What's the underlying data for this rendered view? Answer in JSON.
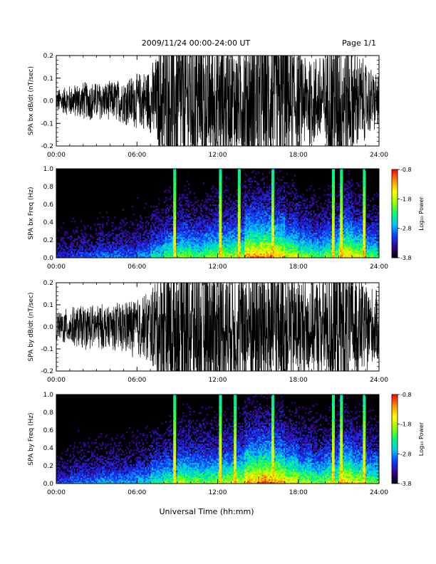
{
  "header": {
    "title": "2009/11/24  00:00-24:00 UT",
    "page": "Page 1/1"
  },
  "xlabel": "Universal Time (hh:mm)",
  "colorbar": {
    "label": "Log₁₀ Power",
    "ticks": [
      "-0.8",
      "-1.8",
      "-2.8",
      "-3.8"
    ],
    "range": [
      -3.8,
      -0.8
    ],
    "colors": [
      "#000000",
      "#3a0090",
      "#0a40ff",
      "#00c8ff",
      "#00ff70",
      "#9aff00",
      "#ffff00",
      "#ff9000",
      "#ff0000"
    ]
  },
  "chart_data": [
    {
      "type": "line",
      "ylabel": "SPA bx dB/dt (nT/sec)",
      "xlim": [
        0,
        24
      ],
      "ylim": [
        -0.2,
        0.2
      ],
      "x_ticks": [
        "00:00",
        "06:00",
        "12:00",
        "18:00",
        "24:00"
      ],
      "y_ticks": [
        "-0.2",
        "-0.1",
        "0.0",
        "0.1",
        "0.2"
      ],
      "series": [
        {
          "color": "#000000",
          "x": [
            0,
            1,
            2,
            3,
            4,
            5,
            6,
            7,
            7.5,
            8,
            9,
            10,
            11,
            12,
            13,
            14,
            15,
            16,
            17,
            18,
            19,
            20,
            20.5,
            21,
            22,
            23,
            24
          ],
          "envelope": [
            0.03,
            0.04,
            0.05,
            0.05,
            0.05,
            0.06,
            0.07,
            0.09,
            0.12,
            0.2,
            0.2,
            0.2,
            0.18,
            0.18,
            0.15,
            0.17,
            0.2,
            0.2,
            0.2,
            0.14,
            0.12,
            0.13,
            0.2,
            0.2,
            0.15,
            0.1,
            0.07
          ]
        }
      ]
    },
    {
      "type": "heatmap",
      "ylabel": "SPA bx Freq (Hz)",
      "xlim": [
        0,
        24
      ],
      "ylim": [
        0.0,
        1.0
      ],
      "x_ticks": [
        "00:00",
        "06:00",
        "12:00",
        "18:00",
        "24:00"
      ],
      "y_ticks": [
        "0.0",
        "0.2",
        "0.4",
        "0.6",
        "0.8",
        "1.0"
      ],
      "activity": [
        0.2,
        0.25,
        0.25,
        0.3,
        0.3,
        0.3,
        0.35,
        0.45,
        0.55,
        0.6,
        0.55,
        0.6,
        0.65,
        0.65,
        0.85,
        0.85,
        0.8,
        0.7,
        0.6,
        0.55,
        0.6,
        0.8,
        0.7,
        0.55,
        0.45
      ],
      "vertical_lines": [
        8.8,
        12.2,
        13.6,
        16.1,
        20.6,
        21.2,
        22.9
      ]
    },
    {
      "type": "line",
      "ylabel": "SPA by dB/dt (nT/sec)",
      "xlim": [
        0,
        24
      ],
      "ylim": [
        -0.2,
        0.2
      ],
      "x_ticks": [
        "00:00",
        "06:00",
        "12:00",
        "18:00",
        "24:00"
      ],
      "y_ticks": [
        "-0.2",
        "-0.1",
        "0.0",
        "0.1",
        "0.2"
      ],
      "series": [
        {
          "color": "#000000",
          "x": [
            0,
            1,
            2,
            3,
            4,
            5,
            6,
            7,
            7.5,
            8,
            9,
            10,
            11,
            12,
            13,
            14,
            15,
            16,
            17,
            18,
            19,
            20,
            20.5,
            21,
            22,
            23,
            24
          ],
          "envelope": [
            0.04,
            0.05,
            0.06,
            0.06,
            0.06,
            0.07,
            0.08,
            0.1,
            0.14,
            0.2,
            0.2,
            0.2,
            0.2,
            0.18,
            0.16,
            0.18,
            0.2,
            0.2,
            0.18,
            0.14,
            0.13,
            0.15,
            0.2,
            0.2,
            0.16,
            0.12,
            0.09
          ]
        }
      ]
    },
    {
      "type": "heatmap",
      "ylabel": "SPA by Freq (Hz)",
      "xlim": [
        0,
        24
      ],
      "ylim": [
        0.0,
        1.0
      ],
      "x_ticks": [
        "00:00",
        "06:00",
        "12:00",
        "18:00",
        "24:00"
      ],
      "y_ticks": [
        "0.0",
        "0.2",
        "0.4",
        "0.6",
        "0.8",
        "1.0"
      ],
      "activity": [
        0.25,
        0.3,
        0.3,
        0.35,
        0.35,
        0.35,
        0.4,
        0.5,
        0.55,
        0.65,
        0.6,
        0.6,
        0.65,
        0.7,
        0.85,
        0.9,
        0.85,
        0.75,
        0.65,
        0.6,
        0.65,
        0.8,
        0.7,
        0.6,
        0.5
      ],
      "vertical_lines": [
        8.8,
        12.2,
        13.3,
        16.1,
        20.6,
        21.2,
        22.9
      ]
    }
  ]
}
